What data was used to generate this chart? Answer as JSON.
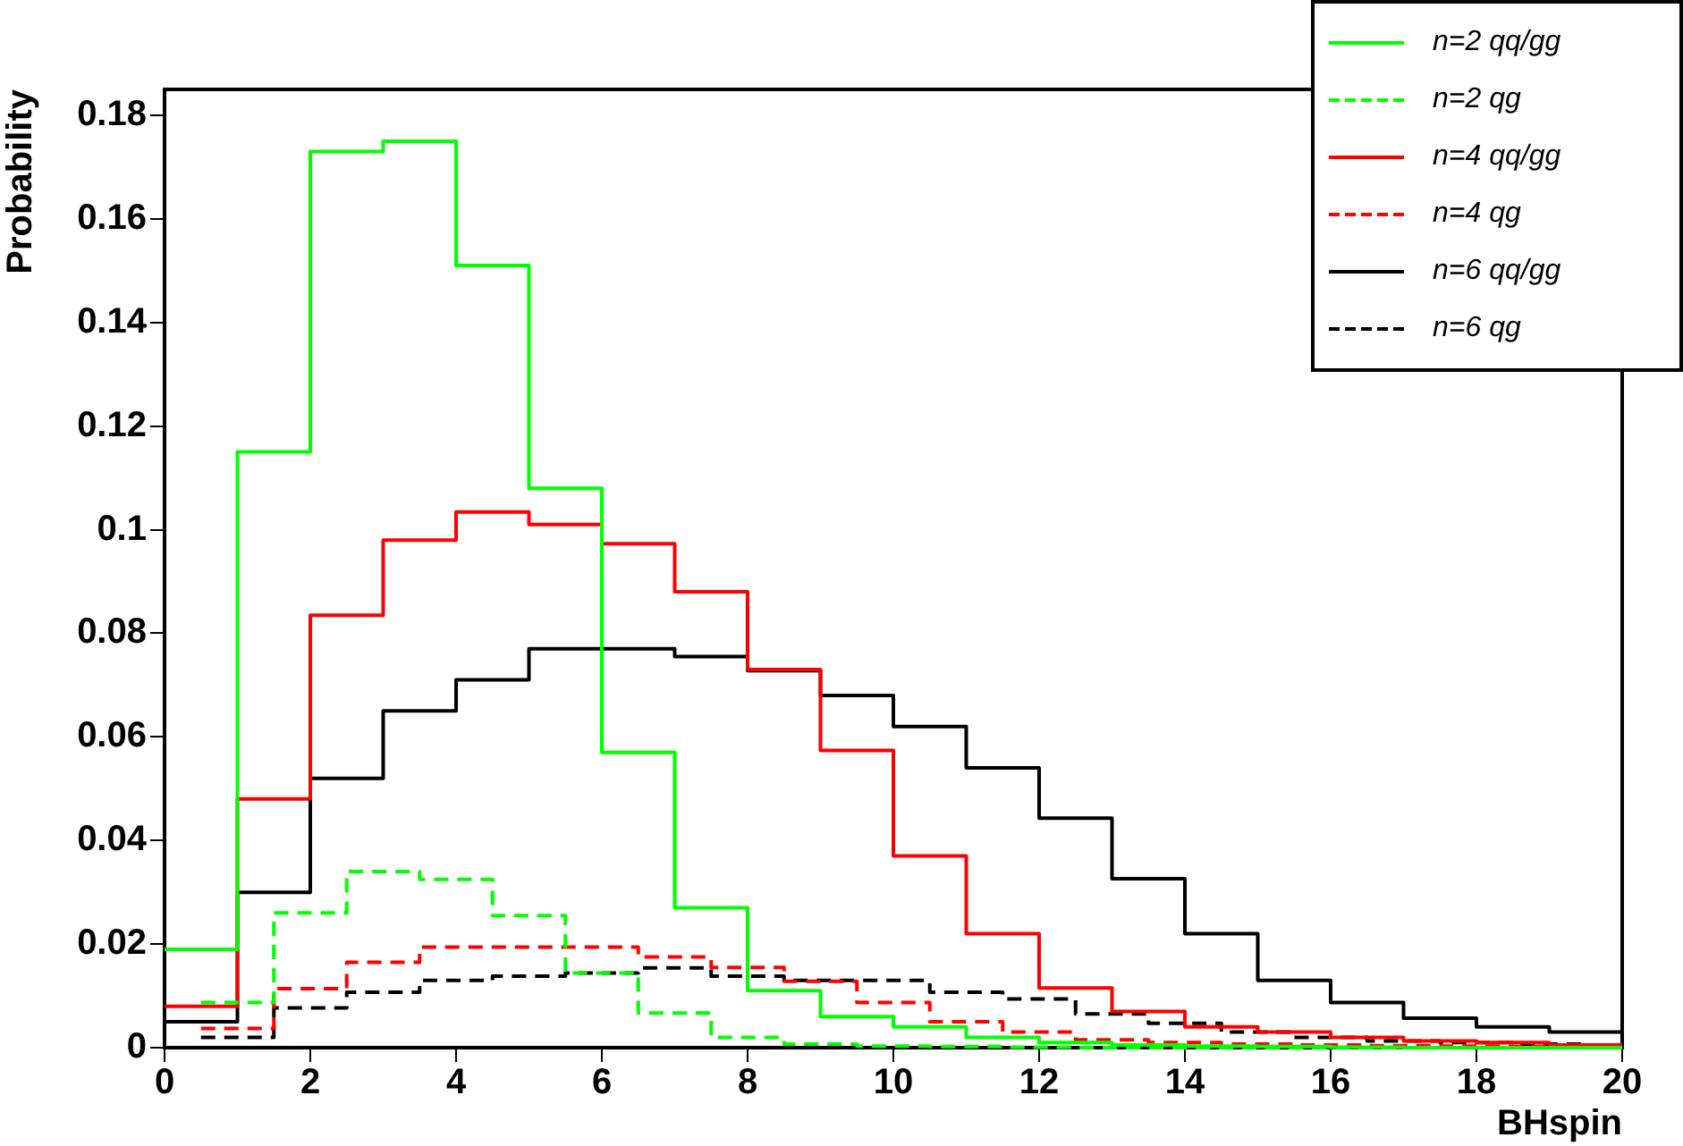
{
  "chart_data": {
    "type": "step",
    "xlabel": "BHspin",
    "ylabel": "Probability",
    "xlim": [
      0,
      20
    ],
    "xticks": [
      0,
      2,
      4,
      6,
      8,
      10,
      12,
      14,
      16,
      18,
      20
    ],
    "ylim": [
      0,
      0.185
    ],
    "yticks": [
      0,
      0.02,
      0.04,
      0.06,
      0.08,
      0.1,
      0.12,
      0.14,
      0.16,
      0.18
    ],
    "grid": false,
    "legend": "top right",
    "series": [
      {
        "name": "n=2 qq/gg",
        "color": "#00ff00",
        "line_style": "solid",
        "x": [
          0,
          1,
          2,
          3,
          4,
          5,
          6,
          7,
          8,
          9,
          10,
          11,
          12,
          13,
          14,
          15,
          16,
          17,
          18,
          19,
          20
        ],
        "values": [
          0.019,
          0.115,
          0.173,
          0.175,
          0.151,
          0.108,
          0.057,
          0.027,
          0.011,
          0.006,
          0.004,
          0.002,
          0.001,
          0.0005,
          0.0003,
          0.0002,
          0.0001,
          0,
          0,
          0,
          0
        ]
      },
      {
        "name": "n=2 qg",
        "color": "#00ff00",
        "line_style": "dashed",
        "x": [
          0.5,
          1.5,
          2.5,
          3.5,
          4.5,
          5.5,
          6.5,
          7.5,
          8.5,
          9.5,
          10.5,
          11.5,
          12.5,
          13.5,
          14.5,
          15.5,
          16.5,
          17.5,
          18.5,
          19.5,
          20
        ],
        "values": [
          0.0087,
          0.026,
          0.034,
          0.0325,
          0.0255,
          0.0144,
          0.0067,
          0.002,
          0.0007,
          0.0003,
          0.0002,
          0.0001,
          0,
          0,
          0,
          0,
          0,
          0,
          0,
          0,
          0
        ]
      },
      {
        "name": "n=4 qq/gg",
        "color": "#ff0000",
        "line_style": "solid",
        "x": [
          0,
          1,
          2,
          3,
          4,
          5,
          6,
          7,
          8,
          9,
          10,
          11,
          12,
          13,
          14,
          15,
          16,
          17,
          18,
          19,
          20
        ],
        "values": [
          0.008,
          0.048,
          0.0835,
          0.098,
          0.1034,
          0.101,
          0.0973,
          0.088,
          0.073,
          0.0574,
          0.037,
          0.022,
          0.0115,
          0.007,
          0.004,
          0.003,
          0.002,
          0.0013,
          0.001,
          0.0005,
          0.0005
        ]
      },
      {
        "name": "n=4 qg",
        "color": "#ff0000",
        "line_style": "dashed",
        "x": [
          0.5,
          1.5,
          2.5,
          3.5,
          4.5,
          5.5,
          6.5,
          7.5,
          8.5,
          9.5,
          10.5,
          11.5,
          12.5,
          13.5,
          14.5,
          15.5,
          16.5,
          17.5,
          18.5,
          19.5,
          20
        ],
        "values": [
          0.0037,
          0.0114,
          0.0165,
          0.0194,
          0.0194,
          0.0194,
          0.0175,
          0.0155,
          0.0128,
          0.0087,
          0.005,
          0.003,
          0.0015,
          0.001,
          0.0007,
          0.0005,
          0.0004,
          0.0003,
          0.0002,
          0.0001,
          0.0001
        ]
      },
      {
        "name": "n=6 qq/gg",
        "color": "#000000",
        "line_style": "solid",
        "x": [
          0,
          1,
          2,
          3,
          4,
          5,
          6,
          7,
          8,
          9,
          10,
          11,
          12,
          13,
          14,
          15,
          16,
          17,
          18,
          19,
          20
        ],
        "values": [
          0.005,
          0.03,
          0.052,
          0.065,
          0.071,
          0.077,
          0.077,
          0.0755,
          0.0728,
          0.068,
          0.062,
          0.054,
          0.0443,
          0.0326,
          0.022,
          0.013,
          0.0087,
          0.0057,
          0.004,
          0.003,
          0.003
        ]
      },
      {
        "name": "n=6 qg",
        "color": "#000000",
        "line_style": "dashed",
        "x": [
          0.5,
          1.5,
          2.5,
          3.5,
          4.5,
          5.5,
          6.5,
          7.5,
          8.5,
          9.5,
          10.5,
          11.5,
          12.5,
          13.5,
          14.5,
          15.5,
          16.5,
          17.5,
          18.5,
          19.5,
          20
        ],
        "values": [
          0.002,
          0.0077,
          0.0107,
          0.013,
          0.0138,
          0.0144,
          0.0154,
          0.0138,
          0.013,
          0.013,
          0.0107,
          0.0094,
          0.0065,
          0.0047,
          0.003,
          0.002,
          0.0013,
          0.001,
          0.0007,
          0.0005,
          0.0005
        ]
      }
    ]
  }
}
